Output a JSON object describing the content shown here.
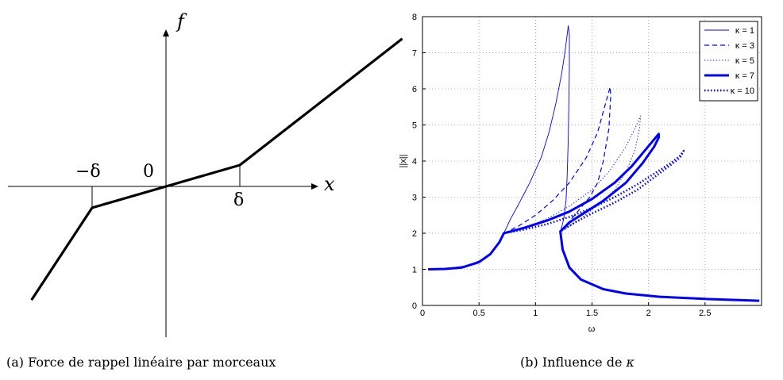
{
  "chart_data": [
    {
      "type": "line",
      "panel": "(a)",
      "x_axis_label": "x",
      "y_axis_label": "f",
      "tick_labels": {
        "minus_delta": "−δ",
        "zero": "0",
        "delta": "δ"
      },
      "x_points": [
        -1.82,
        -1,
        0,
        1,
        3.2
      ],
      "y_points": [
        -2.92,
        -0.55,
        0,
        0.55,
        3.8
      ]
    },
    {
      "type": "line",
      "panel": "(b)",
      "xlabel": "ω",
      "ylabel": "||x||",
      "xlim": [
        0,
        3
      ],
      "ylim": [
        0,
        8
      ],
      "x_ticks": [
        "0",
        "0.5",
        "1",
        "1.5",
        "2",
        "2.5"
      ],
      "y_ticks": [
        "0",
        "1",
        "2",
        "3",
        "4",
        "5",
        "6",
        "7",
        "8"
      ],
      "grid": true,
      "legend_position": "top-right",
      "series": [
        {
          "name": "κ = 1",
          "x": [
            0.05,
            0.2,
            0.4,
            0.55,
            0.65,
            0.72,
            0.78,
            0.85,
            0.95,
            1.05,
            1.12,
            1.18,
            1.23,
            1.26,
            1.28,
            1.29,
            1.3,
            1.3,
            1.295,
            1.29,
            1.28,
            1.27,
            1.25,
            1.23,
            1.22
          ],
          "y": [
            1.0,
            1.02,
            1.1,
            1.3,
            1.6,
            2.0,
            2.4,
            2.8,
            3.4,
            4.1,
            4.8,
            5.6,
            6.4,
            7.0,
            7.5,
            7.75,
            7.5,
            6.6,
            5.6,
            4.6,
            3.6,
            2.9,
            2.4,
            2.15,
            2.05
          ]
        },
        {
          "name": "κ = 3",
          "x": [
            0.72,
            0.85,
            1.0,
            1.15,
            1.3,
            1.45,
            1.55,
            1.62,
            1.66,
            1.665,
            1.65,
            1.6,
            1.55,
            1.48,
            1.4,
            1.32,
            1.26,
            1.22
          ],
          "y": [
            2.0,
            2.2,
            2.5,
            2.9,
            3.4,
            4.1,
            4.8,
            5.6,
            6.05,
            5.8,
            4.9,
            4.0,
            3.4,
            3.0,
            2.7,
            2.4,
            2.2,
            2.05
          ]
        },
        {
          "name": "κ = 5",
          "x": [
            0.72,
            0.9,
            1.1,
            1.3,
            1.5,
            1.65,
            1.8,
            1.88,
            1.93,
            1.92,
            1.88,
            1.8,
            1.7,
            1.6,
            1.5,
            1.4,
            1.3,
            1.22
          ],
          "y": [
            2.0,
            2.15,
            2.4,
            2.75,
            3.2,
            3.7,
            4.4,
            4.9,
            5.25,
            4.9,
            4.3,
            3.7,
            3.2,
            2.9,
            2.65,
            2.4,
            2.2,
            2.05
          ]
        },
        {
          "name": "κ = 7",
          "x": [
            0.05,
            0.2,
            0.35,
            0.5,
            0.6,
            0.68,
            0.72,
            0.9,
            1.1,
            1.3,
            1.5,
            1.7,
            1.85,
            1.97,
            2.05,
            2.09,
            2.09,
            2.05,
            1.95,
            1.8,
            1.6,
            1.45,
            1.3,
            1.22,
            1.24,
            1.3,
            1.4,
            1.6,
            1.8,
            2.1,
            2.5,
            2.98
          ],
          "y": [
            1.0,
            1.01,
            1.05,
            1.2,
            1.42,
            1.75,
            2.0,
            2.15,
            2.35,
            2.6,
            2.95,
            3.4,
            3.85,
            4.3,
            4.6,
            4.75,
            4.65,
            4.4,
            3.95,
            3.4,
            2.9,
            2.6,
            2.3,
            2.05,
            1.55,
            1.05,
            0.72,
            0.45,
            0.33,
            0.24,
            0.18,
            0.13
          ]
        },
        {
          "name": "κ = 10",
          "x": [
            0.72,
            0.9,
            1.1,
            1.3,
            1.5,
            1.7,
            1.9,
            2.05,
            2.2,
            2.28,
            2.31,
            2.28,
            2.2,
            2.05,
            1.9,
            1.7,
            1.5,
            1.35,
            1.22
          ],
          "y": [
            2.0,
            2.1,
            2.25,
            2.45,
            2.7,
            3.0,
            3.35,
            3.65,
            3.95,
            4.15,
            4.28,
            4.1,
            3.9,
            3.55,
            3.2,
            2.85,
            2.55,
            2.3,
            2.05
          ]
        }
      ]
    }
  ],
  "captions": {
    "a": "(a)  Force de rappel linéaire par morceaux",
    "b_prefix": "(b)  Influence de ",
    "b_symbol": "κ"
  }
}
